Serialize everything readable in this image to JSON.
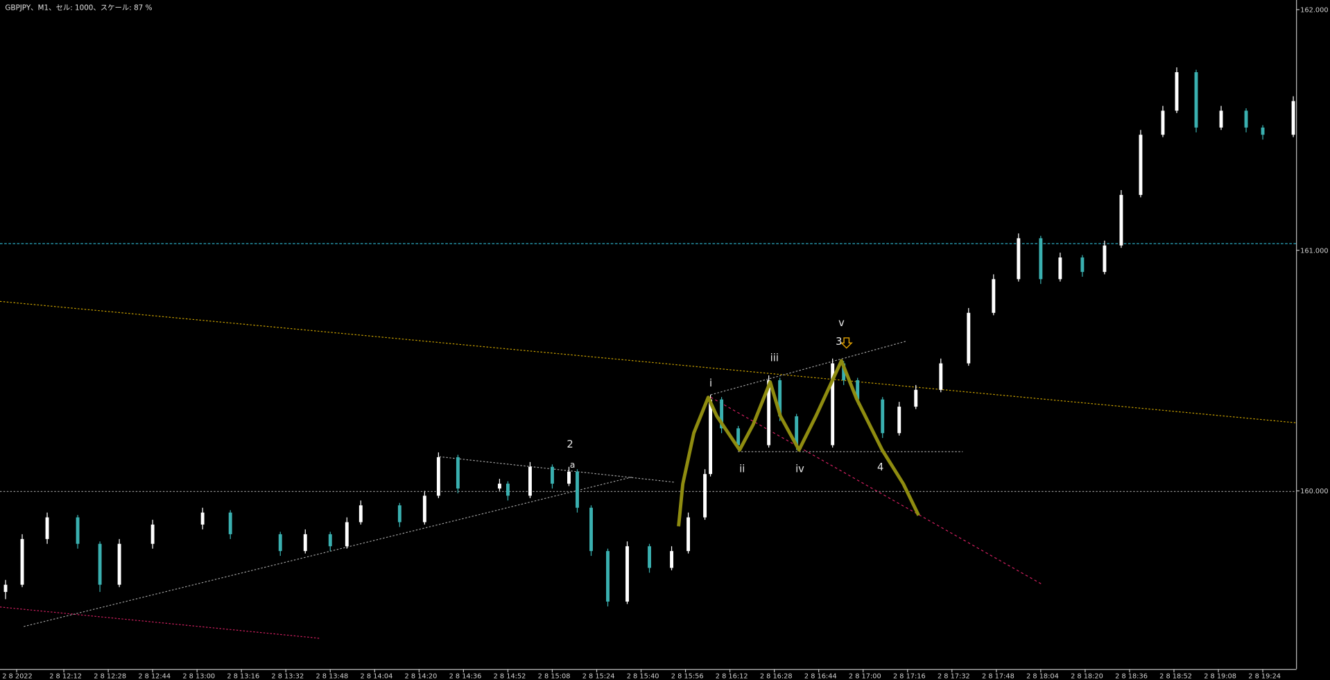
{
  "chart_data": {
    "type": "candlestick",
    "title": "GBPJPY、M1、セル: 1000、スケール: 87 %",
    "up_color": "#ffffff",
    "down_color": "#3ab0b0",
    "xlim": [
      -11,
      456
    ],
    "ylim": [
      159.26,
      162.04
    ],
    "yticks": [
      {
        "value": 160,
        "label": "160.000"
      },
      {
        "value": 161,
        "label": "161.000"
      },
      {
        "value": 162,
        "label": "162.000"
      }
    ],
    "xticks": [
      {
        "value": -5,
        "label": "2 8 2022"
      },
      {
        "value": 12,
        "label": "2 8 12:12"
      },
      {
        "value": 28,
        "label": "2 8 12:28"
      },
      {
        "value": 44,
        "label": "2 8 12:44"
      },
      {
        "value": 60,
        "label": "2 8 13:00"
      },
      {
        "value": 76,
        "label": "2 8 13:16"
      },
      {
        "value": 92,
        "label": "2 8 13:32"
      },
      {
        "value": 108,
        "label": "2 8 13:48"
      },
      {
        "value": 124,
        "label": "2 8 14:04"
      },
      {
        "value": 140,
        "label": "2 8 14:20"
      },
      {
        "value": 156,
        "label": "2 8 14:36"
      },
      {
        "value": 172,
        "label": "2 8 14:52"
      },
      {
        "value": 188,
        "label": "2 8 15:08"
      },
      {
        "value": 204,
        "label": "2 8 15:24"
      },
      {
        "value": 220,
        "label": "2 8 15:40"
      },
      {
        "value": 236,
        "label": "2 8 15:56"
      },
      {
        "value": 252,
        "label": "2 8 16:12"
      },
      {
        "value": 268,
        "label": "2 8 16:28"
      },
      {
        "value": 284,
        "label": "2 8 16:44"
      },
      {
        "value": 300,
        "label": "2 8 17:00"
      },
      {
        "value": 316,
        "label": "2 8 17:16"
      },
      {
        "value": 332,
        "label": "2 8 17:32"
      },
      {
        "value": 348,
        "label": "2 8 17:48"
      },
      {
        "value": 364,
        "label": "2 8 18:04"
      },
      {
        "value": 380,
        "label": "2 8 18:20"
      },
      {
        "value": 396,
        "label": "2 8 18:36"
      },
      {
        "value": 412,
        "label": "2 8 18:52"
      },
      {
        "value": 428,
        "label": "2 8 19:08"
      },
      {
        "value": 444,
        "label": "2 8 19:24"
      }
    ],
    "x": [
      -9,
      -3,
      6,
      17,
      25,
      32,
      44,
      62,
      72,
      90,
      99,
      108,
      114,
      119,
      133,
      142,
      147,
      154,
      169,
      172,
      180,
      188,
      194,
      197,
      202,
      208,
      215,
      223,
      231,
      237,
      243,
      245,
      249,
      255,
      266,
      270,
      276,
      289,
      293,
      298,
      307,
      313,
      319,
      328,
      338,
      347,
      356,
      364,
      371,
      379,
      387,
      393,
      400,
      408,
      413,
      420,
      429,
      438,
      444,
      455
    ],
    "ohlc": [
      [
        159.58,
        159.63,
        159.55,
        159.61
      ],
      [
        159.61,
        159.82,
        159.6,
        159.8
      ],
      [
        159.8,
        159.91,
        159.78,
        159.89
      ],
      [
        159.89,
        159.9,
        159.76,
        159.78
      ],
      [
        159.78,
        159.79,
        159.58,
        159.61
      ],
      [
        159.61,
        159.8,
        159.6,
        159.78
      ],
      [
        159.78,
        159.88,
        159.76,
        159.86
      ],
      [
        159.86,
        159.93,
        159.84,
        159.91
      ],
      [
        159.91,
        159.92,
        159.8,
        159.82
      ],
      [
        159.82,
        159.83,
        159.73,
        159.75
      ],
      [
        159.75,
        159.84,
        159.74,
        159.82
      ],
      [
        159.82,
        159.83,
        159.75,
        159.77
      ],
      [
        159.77,
        159.89,
        159.76,
        159.87
      ],
      [
        159.87,
        159.96,
        159.86,
        159.94
      ],
      [
        159.94,
        159.95,
        159.85,
        159.87
      ],
      [
        159.87,
        160.0,
        159.86,
        159.98
      ],
      [
        159.98,
        160.16,
        159.97,
        160.14
      ],
      [
        160.14,
        160.15,
        159.99,
        160.01
      ],
      [
        160.01,
        160.05,
        160.0,
        160.03
      ],
      [
        160.03,
        160.04,
        159.96,
        159.98
      ],
      [
        159.98,
        160.12,
        159.97,
        160.1
      ],
      [
        160.1,
        160.11,
        160.01,
        160.03
      ],
      [
        160.03,
        160.1,
        160.02,
        160.08
      ],
      [
        160.08,
        160.09,
        159.91,
        159.93
      ],
      [
        159.93,
        159.94,
        159.73,
        159.75
      ],
      [
        159.75,
        159.76,
        159.52,
        159.54
      ],
      [
        159.54,
        159.79,
        159.53,
        159.77
      ],
      [
        159.77,
        159.78,
        159.66,
        159.68
      ],
      [
        159.68,
        159.77,
        159.67,
        159.75
      ],
      [
        159.75,
        159.91,
        159.74,
        159.89
      ],
      [
        159.89,
        160.09,
        159.88,
        160.07
      ],
      [
        160.07,
        160.4,
        160.06,
        160.38
      ],
      [
        160.38,
        160.39,
        160.24,
        160.26
      ],
      [
        160.26,
        160.27,
        160.17,
        160.19
      ],
      [
        160.19,
        160.48,
        160.18,
        160.46
      ],
      [
        160.46,
        160.47,
        160.29,
        160.31
      ],
      [
        160.31,
        160.32,
        160.17,
        160.19
      ],
      [
        160.19,
        160.55,
        160.18,
        160.53
      ],
      [
        160.53,
        160.54,
        160.44,
        160.46
      ],
      [
        160.46,
        160.47,
        160.36,
        160.38
      ],
      [
        160.38,
        160.39,
        160.22,
        160.24
      ],
      [
        160.24,
        160.37,
        160.23,
        160.35
      ],
      [
        160.35,
        160.44,
        160.34,
        160.42
      ],
      [
        160.42,
        160.55,
        160.41,
        160.53
      ],
      [
        160.53,
        160.76,
        160.52,
        160.74
      ],
      [
        160.74,
        160.9,
        160.73,
        160.88
      ],
      [
        160.88,
        161.07,
        160.87,
        161.05
      ],
      [
        161.05,
        161.06,
        160.86,
        160.88
      ],
      [
        160.88,
        160.99,
        160.87,
        160.97
      ],
      [
        160.97,
        160.98,
        160.89,
        160.91
      ],
      [
        160.91,
        161.04,
        160.9,
        161.02
      ],
      [
        161.02,
        161.25,
        161.01,
        161.23
      ],
      [
        161.23,
        161.5,
        161.22,
        161.48
      ],
      [
        161.48,
        161.6,
        161.47,
        161.58
      ],
      [
        161.58,
        161.76,
        161.57,
        161.74
      ],
      [
        161.74,
        161.75,
        161.49,
        161.51
      ],
      [
        161.51,
        161.6,
        161.5,
        161.58
      ],
      [
        161.58,
        161.59,
        161.49,
        161.51
      ],
      [
        161.51,
        161.52,
        161.46,
        161.48
      ],
      [
        161.48,
        161.64,
        161.47,
        161.62
      ]
    ],
    "annotations": [
      "2",
      "a",
      "i",
      "ii",
      "iii",
      "iv",
      "v",
      "3",
      "4"
    ]
  }
}
